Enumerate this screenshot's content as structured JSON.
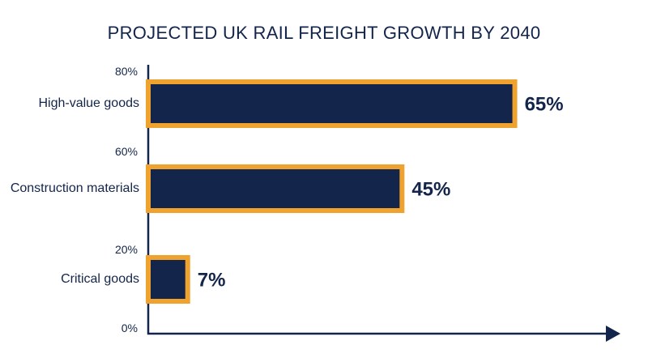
{
  "chart_data": {
    "type": "bar",
    "orientation": "horizontal",
    "title": "PROJECTED UK RAIL FREIGHT GROWTH BY 2040",
    "categories": [
      "High-value goods",
      "Construction materials",
      "Critical goods"
    ],
    "values": [
      65,
      45,
      7
    ],
    "value_labels": [
      "65%",
      "45%",
      "7%"
    ],
    "axis_labels": [
      "80%",
      "60%",
      "20%",
      "0%"
    ],
    "color": "#13254a",
    "edge_color": "#f0a22e",
    "xlim": [
      0,
      80
    ]
  }
}
